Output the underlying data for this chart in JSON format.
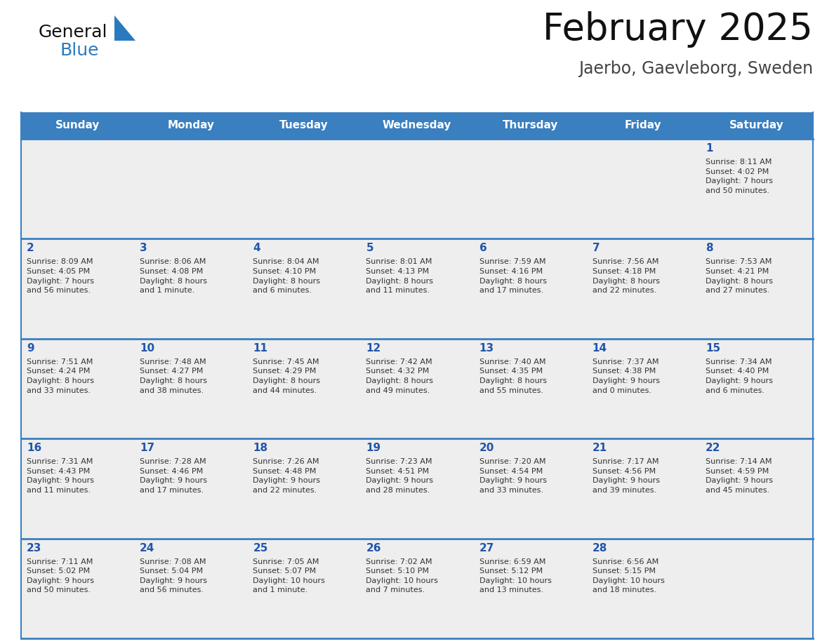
{
  "title": "February 2025",
  "subtitle": "Jaerbo, Gaevleborg, Sweden",
  "days_of_week": [
    "Sunday",
    "Monday",
    "Tuesday",
    "Wednesday",
    "Thursday",
    "Friday",
    "Saturday"
  ],
  "header_bg": "#3a7fbf",
  "header_text": "#ffffff",
  "cell_bg": "#eeeeee",
  "border_color": "#3a7fbf",
  "day_number_color": "#2255aa",
  "info_color": "#333333",
  "title_color": "#111111",
  "subtitle_color": "#444444",
  "logo_general_color": "#111111",
  "logo_blue_color": "#2a7abf",
  "logo_triangle_color": "#2a7abf",
  "weeks": [
    [
      {
        "day": null,
        "info": null
      },
      {
        "day": null,
        "info": null
      },
      {
        "day": null,
        "info": null
      },
      {
        "day": null,
        "info": null
      },
      {
        "day": null,
        "info": null
      },
      {
        "day": null,
        "info": null
      },
      {
        "day": 1,
        "info": "Sunrise: 8:11 AM\nSunset: 4:02 PM\nDaylight: 7 hours\nand 50 minutes."
      }
    ],
    [
      {
        "day": 2,
        "info": "Sunrise: 8:09 AM\nSunset: 4:05 PM\nDaylight: 7 hours\nand 56 minutes."
      },
      {
        "day": 3,
        "info": "Sunrise: 8:06 AM\nSunset: 4:08 PM\nDaylight: 8 hours\nand 1 minute."
      },
      {
        "day": 4,
        "info": "Sunrise: 8:04 AM\nSunset: 4:10 PM\nDaylight: 8 hours\nand 6 minutes."
      },
      {
        "day": 5,
        "info": "Sunrise: 8:01 AM\nSunset: 4:13 PM\nDaylight: 8 hours\nand 11 minutes."
      },
      {
        "day": 6,
        "info": "Sunrise: 7:59 AM\nSunset: 4:16 PM\nDaylight: 8 hours\nand 17 minutes."
      },
      {
        "day": 7,
        "info": "Sunrise: 7:56 AM\nSunset: 4:18 PM\nDaylight: 8 hours\nand 22 minutes."
      },
      {
        "day": 8,
        "info": "Sunrise: 7:53 AM\nSunset: 4:21 PM\nDaylight: 8 hours\nand 27 minutes."
      }
    ],
    [
      {
        "day": 9,
        "info": "Sunrise: 7:51 AM\nSunset: 4:24 PM\nDaylight: 8 hours\nand 33 minutes."
      },
      {
        "day": 10,
        "info": "Sunrise: 7:48 AM\nSunset: 4:27 PM\nDaylight: 8 hours\nand 38 minutes."
      },
      {
        "day": 11,
        "info": "Sunrise: 7:45 AM\nSunset: 4:29 PM\nDaylight: 8 hours\nand 44 minutes."
      },
      {
        "day": 12,
        "info": "Sunrise: 7:42 AM\nSunset: 4:32 PM\nDaylight: 8 hours\nand 49 minutes."
      },
      {
        "day": 13,
        "info": "Sunrise: 7:40 AM\nSunset: 4:35 PM\nDaylight: 8 hours\nand 55 minutes."
      },
      {
        "day": 14,
        "info": "Sunrise: 7:37 AM\nSunset: 4:38 PM\nDaylight: 9 hours\nand 0 minutes."
      },
      {
        "day": 15,
        "info": "Sunrise: 7:34 AM\nSunset: 4:40 PM\nDaylight: 9 hours\nand 6 minutes."
      }
    ],
    [
      {
        "day": 16,
        "info": "Sunrise: 7:31 AM\nSunset: 4:43 PM\nDaylight: 9 hours\nand 11 minutes."
      },
      {
        "day": 17,
        "info": "Sunrise: 7:28 AM\nSunset: 4:46 PM\nDaylight: 9 hours\nand 17 minutes."
      },
      {
        "day": 18,
        "info": "Sunrise: 7:26 AM\nSunset: 4:48 PM\nDaylight: 9 hours\nand 22 minutes."
      },
      {
        "day": 19,
        "info": "Sunrise: 7:23 AM\nSunset: 4:51 PM\nDaylight: 9 hours\nand 28 minutes."
      },
      {
        "day": 20,
        "info": "Sunrise: 7:20 AM\nSunset: 4:54 PM\nDaylight: 9 hours\nand 33 minutes."
      },
      {
        "day": 21,
        "info": "Sunrise: 7:17 AM\nSunset: 4:56 PM\nDaylight: 9 hours\nand 39 minutes."
      },
      {
        "day": 22,
        "info": "Sunrise: 7:14 AM\nSunset: 4:59 PM\nDaylight: 9 hours\nand 45 minutes."
      }
    ],
    [
      {
        "day": 23,
        "info": "Sunrise: 7:11 AM\nSunset: 5:02 PM\nDaylight: 9 hours\nand 50 minutes."
      },
      {
        "day": 24,
        "info": "Sunrise: 7:08 AM\nSunset: 5:04 PM\nDaylight: 9 hours\nand 56 minutes."
      },
      {
        "day": 25,
        "info": "Sunrise: 7:05 AM\nSunset: 5:07 PM\nDaylight: 10 hours\nand 1 minute."
      },
      {
        "day": 26,
        "info": "Sunrise: 7:02 AM\nSunset: 5:10 PM\nDaylight: 10 hours\nand 7 minutes."
      },
      {
        "day": 27,
        "info": "Sunrise: 6:59 AM\nSunset: 5:12 PM\nDaylight: 10 hours\nand 13 minutes."
      },
      {
        "day": 28,
        "info": "Sunrise: 6:56 AM\nSunset: 5:15 PM\nDaylight: 10 hours\nand 18 minutes."
      },
      {
        "day": null,
        "info": null
      }
    ]
  ]
}
